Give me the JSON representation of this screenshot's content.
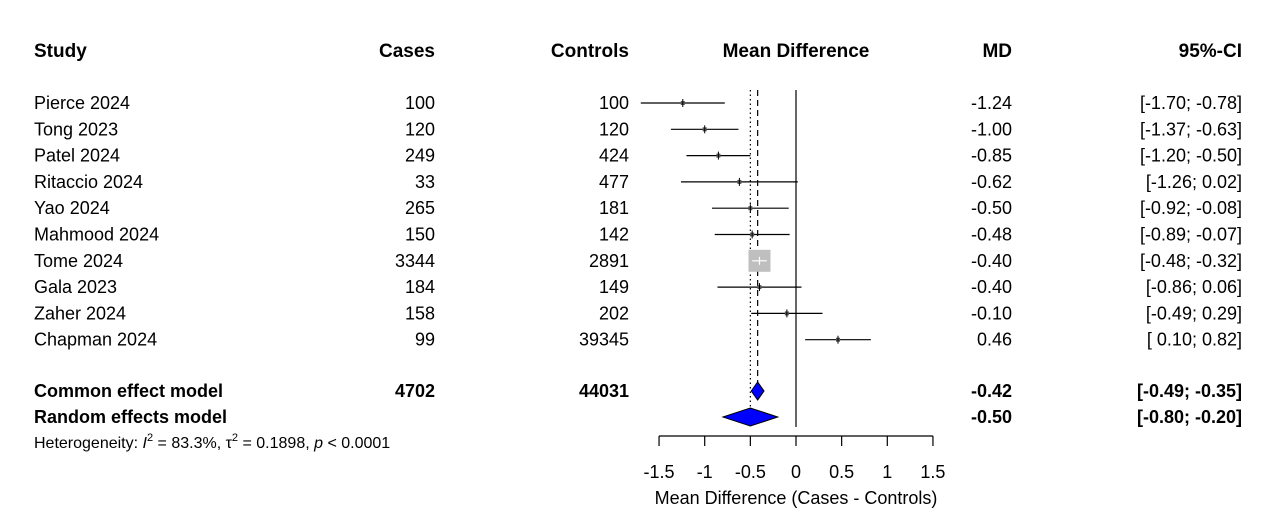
{
  "headers": {
    "study": "Study",
    "cases": "Cases",
    "controls": "Controls",
    "plot": "Mean Difference",
    "md": "MD",
    "ci": "95%-CI"
  },
  "chart_data": {
    "type": "forest",
    "studies": [
      {
        "name": "Pierce 2024",
        "cases": "100",
        "controls": "100",
        "md": -1.24,
        "lo": -1.7,
        "hi": -0.78,
        "md_text": "-1.24",
        "ci_text": "[-1.70; -0.78]",
        "weight": 1
      },
      {
        "name": "Tong 2023",
        "cases": "120",
        "controls": "120",
        "md": -1.0,
        "lo": -1.37,
        "hi": -0.63,
        "md_text": "-1.00",
        "ci_text": "[-1.37; -0.63]",
        "weight": 1
      },
      {
        "name": "Patel 2024",
        "cases": "249",
        "controls": "424",
        "md": -0.85,
        "lo": -1.2,
        "hi": -0.5,
        "md_text": "-0.85",
        "ci_text": "[-1.20; -0.50]",
        "weight": 1
      },
      {
        "name": "Ritaccio 2024",
        "cases": "33",
        "controls": "477",
        "md": -0.62,
        "lo": -1.26,
        "hi": 0.02,
        "md_text": "-0.62",
        "ci_text": "[-1.26;  0.02]",
        "weight": 1
      },
      {
        "name": "Yao 2024",
        "cases": "265",
        "controls": "181",
        "md": -0.5,
        "lo": -0.92,
        "hi": -0.08,
        "md_text": "-0.50",
        "ci_text": "[-0.92; -0.08]",
        "weight": 1
      },
      {
        "name": "Mahmood 2024",
        "cases": "150",
        "controls": "142",
        "md": -0.48,
        "lo": -0.89,
        "hi": -0.07,
        "md_text": "-0.48",
        "ci_text": "[-0.89; -0.07]",
        "weight": 1
      },
      {
        "name": "Tome 2024",
        "cases": "3344",
        "controls": "2891",
        "md": -0.4,
        "lo": -0.48,
        "hi": -0.32,
        "md_text": "-0.40",
        "ci_text": "[-0.48; -0.32]",
        "weight": 10
      },
      {
        "name": "Gala 2023",
        "cases": "184",
        "controls": "149",
        "md": -0.4,
        "lo": -0.86,
        "hi": 0.06,
        "md_text": "-0.40",
        "ci_text": "[-0.86;  0.06]",
        "weight": 1
      },
      {
        "name": "Zaher 2024",
        "cases": "158",
        "controls": "202",
        "md": -0.1,
        "lo": -0.49,
        "hi": 0.29,
        "md_text": "-0.10",
        "ci_text": "[-0.49;  0.29]",
        "weight": 1
      },
      {
        "name": "Chapman 2024",
        "cases": "99",
        "controls": "39345",
        "md": 0.46,
        "lo": 0.1,
        "hi": 0.82,
        "md_text": "0.46",
        "ci_text": "[ 0.10;  0.82]",
        "weight": 1
      }
    ],
    "common": {
      "name": "Common effect model",
      "cases": "4702",
      "controls": "44031",
      "md": -0.42,
      "lo": -0.49,
      "hi": -0.35,
      "md_text": "-0.42",
      "ci_text": "[-0.49; -0.35]"
    },
    "random": {
      "name": "Random effects model",
      "md": -0.5,
      "lo": -0.8,
      "hi": -0.2,
      "md_text": "-0.50",
      "ci_text": "[-0.80; -0.20]"
    },
    "heterogeneity": {
      "prefix": "Heterogeneity: ",
      "i2_symbol": "I",
      "i2_value": " = 83.3%, ",
      "tau2_symbol": "τ",
      "tau2_value": " = 0.1898, ",
      "p_symbol": "p",
      "p_value": " < 0.0001"
    },
    "xaxis": {
      "label": "Mean Difference (Cases - Controls)",
      "ticks": [
        -1.5,
        -1,
        -0.5,
        0,
        0.5,
        1,
        1.5
      ],
      "tick_labels": [
        "-1.5",
        "-1",
        "-0.5",
        "0",
        "0.5",
        "1",
        "1.5"
      ],
      "range": [
        -1.5,
        1.5
      ]
    },
    "reference_line": 0,
    "colors": {
      "diamond": "#0000ff",
      "large_square": "#bfbfbf",
      "line": "#000000"
    }
  }
}
